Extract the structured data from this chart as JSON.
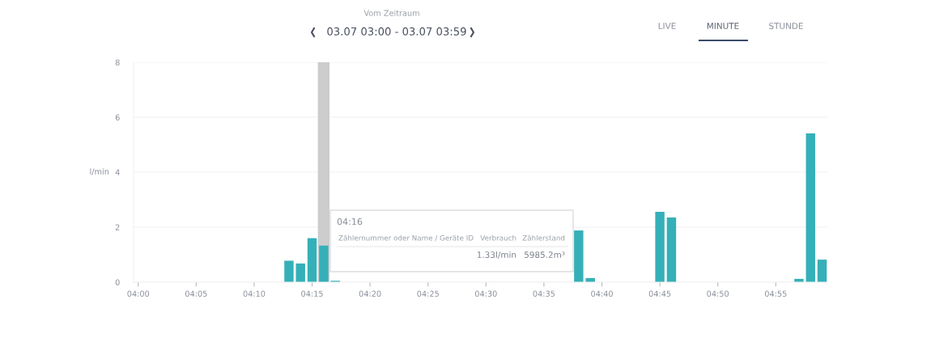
{
  "chart_data": {
    "type": "bar",
    "subtitle": "Vom Zeitraum",
    "title": "03.07 03:00 - 03.07 03:59",
    "ylabel": "l/min",
    "x": [
      4.2167,
      4.2333,
      4.25,
      4.2667,
      4.2833,
      4.6333,
      4.65,
      4.75,
      4.7667,
      4.95,
      4.9667,
      4.9833
    ],
    "series": [
      {
        "color": "#35b0b8",
        "values": [
          0.78,
          0.68,
          1.6,
          1.33,
          0.05,
          1.88,
          0.15,
          2.56,
          2.35,
          0.12,
          5.41,
          0.82
        ]
      }
    ],
    "xlim": [
      3.9933,
      4.9908
    ],
    "xticks": [
      {
        "value": 4.0,
        "label": "04:00"
      },
      {
        "value": 4.0833,
        "label": "04:05"
      },
      {
        "value": 4.1667,
        "label": "04:10"
      },
      {
        "value": 4.25,
        "label": "04:15"
      },
      {
        "value": 4.3333,
        "label": "04:20"
      },
      {
        "value": 4.4167,
        "label": "04:25"
      },
      {
        "value": 4.5,
        "label": "04:30"
      },
      {
        "value": 4.5833,
        "label": "04:35"
      },
      {
        "value": 4.6667,
        "label": "04:40"
      },
      {
        "value": 4.75,
        "label": "04:45"
      },
      {
        "value": 4.8333,
        "label": "04:50"
      },
      {
        "value": 4.9167,
        "label": "04:55"
      }
    ],
    "ylim": [
      0,
      8
    ],
    "yticks": [
      0,
      2,
      4,
      6,
      8
    ],
    "grid": "y",
    "bands": [
      {
        "axis": "x",
        "from": 4.2583,
        "to": 4.275,
        "color": "#cccccc"
      }
    ],
    "annotations": [
      "LIVE",
      "MINUTE",
      "STUNDE",
      "04:16",
      "Zählernummer oder Name / Geräte ID",
      "Verbrauch",
      "Zählerstand",
      "1.33l/min",
      "5985.2m³"
    ]
  }
}
